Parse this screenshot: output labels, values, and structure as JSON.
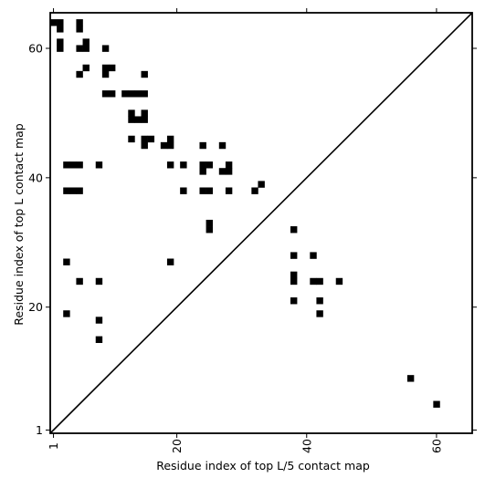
{
  "chart_data": {
    "type": "heatmap",
    "title": "",
    "xlabel": "Residue index of top L/5 contact map",
    "ylabel": "Residue index of top L contact map",
    "xlim": [
      0.5,
      65.5
    ],
    "ylim": [
      0.5,
      65.5
    ],
    "x_ticks": [
      1,
      20,
      40,
      60
    ],
    "y_ticks": [
      1,
      20,
      40,
      60
    ],
    "x_tick_labels": [
      "1",
      "20",
      "40",
      "60"
    ],
    "y_tick_labels": [
      "1",
      "20",
      "40",
      "60"
    ],
    "x_tick_rotation_deg": -90,
    "grid": false,
    "diagonal_line": true,
    "cell_color": "#000000",
    "background_color": "#ffffff",
    "top_L_contacts_upper": [
      [
        1,
        64
      ],
      [
        2,
        64
      ],
      [
        5,
        64
      ],
      [
        2,
        63
      ],
      [
        5,
        63
      ],
      [
        2,
        61
      ],
      [
        6,
        61
      ],
      [
        2,
        60
      ],
      [
        5,
        60
      ],
      [
        6,
        60
      ],
      [
        9,
        60
      ],
      [
        9,
        57
      ],
      [
        10,
        57
      ],
      [
        6,
        57
      ],
      [
        5,
        56
      ],
      [
        9,
        56
      ],
      [
        15,
        56
      ],
      [
        9,
        53
      ],
      [
        10,
        53
      ],
      [
        12,
        53
      ],
      [
        13,
        53
      ],
      [
        14,
        53
      ],
      [
        15,
        53
      ],
      [
        13,
        50
      ],
      [
        15,
        50
      ],
      [
        13,
        49
      ],
      [
        14,
        49
      ],
      [
        15,
        49
      ],
      [
        13,
        46
      ],
      [
        15,
        46
      ],
      [
        16,
        46
      ],
      [
        19,
        46
      ],
      [
        15,
        45
      ],
      [
        18,
        45
      ],
      [
        19,
        45
      ],
      [
        24,
        45
      ],
      [
        27,
        45
      ],
      [
        3,
        42
      ],
      [
        4,
        42
      ],
      [
        5,
        42
      ],
      [
        8,
        42
      ],
      [
        19,
        42
      ],
      [
        21,
        42
      ],
      [
        24,
        42
      ],
      [
        25,
        42
      ],
      [
        28,
        42
      ],
      [
        24,
        41
      ],
      [
        27,
        41
      ],
      [
        28,
        41
      ],
      [
        33,
        39
      ],
      [
        3,
        38
      ],
      [
        4,
        38
      ],
      [
        5,
        38
      ],
      [
        21,
        38
      ],
      [
        24,
        38
      ],
      [
        25,
        38
      ],
      [
        28,
        38
      ],
      [
        32,
        38
      ],
      [
        25,
        33
      ],
      [
        25,
        32
      ]
    ],
    "top_L5_contacts_lower": [
      [
        38,
        32
      ],
      [
        3,
        27
      ],
      [
        19,
        27
      ],
      [
        38,
        28
      ],
      [
        41,
        28
      ],
      [
        38,
        25
      ],
      [
        38,
        24
      ],
      [
        41,
        24
      ],
      [
        42,
        24
      ],
      [
        45,
        24
      ],
      [
        5,
        24
      ],
      [
        8,
        24
      ],
      [
        38,
        21
      ],
      [
        42,
        21
      ],
      [
        3,
        19
      ],
      [
        42,
        19
      ],
      [
        8,
        18
      ],
      [
        8,
        15
      ],
      [
        56,
        9
      ],
      [
        60,
        5
      ]
    ]
  }
}
